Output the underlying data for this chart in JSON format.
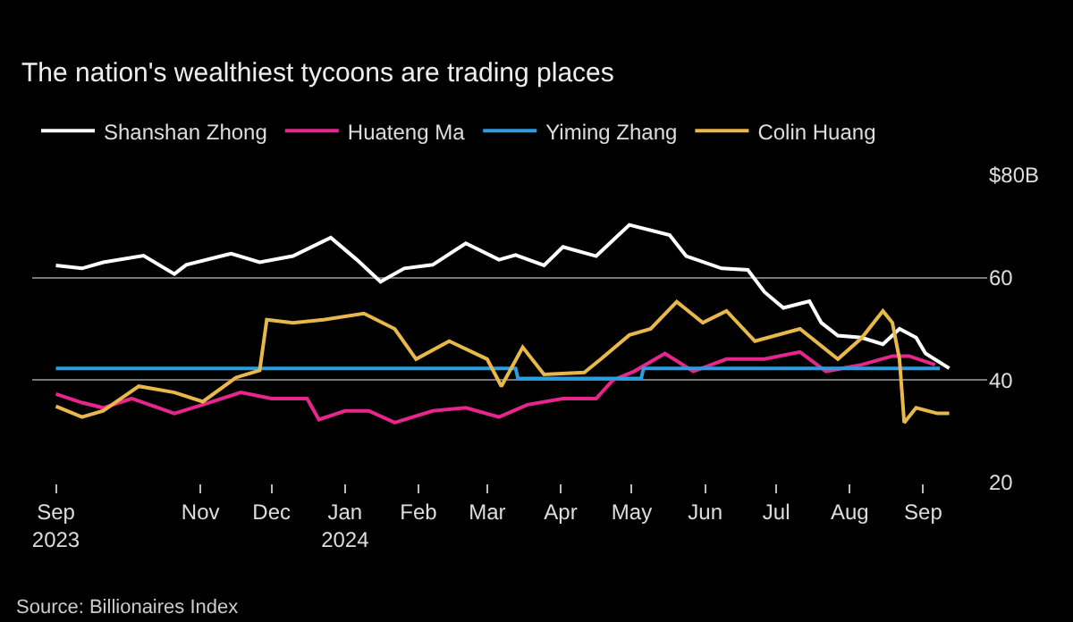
{
  "chart_data": {
    "type": "line",
    "title": "The nation's wealthiest tycoons are trading places",
    "annotations": [
      "Source: Billionaires Index"
    ],
    "xlim": [
      "2023-08-22",
      "2024-09-28"
    ],
    "xticks": [
      {
        "value": "2023-09-01",
        "label": "Sep\n2023"
      },
      {
        "value": "2023-11-01",
        "label": "Nov"
      },
      {
        "value": "2023-12-01",
        "label": "Dec"
      },
      {
        "value": "2024-01-01",
        "label": "Jan\n2024"
      },
      {
        "value": "2024-02-01",
        "label": "Feb"
      },
      {
        "value": "2024-03-01",
        "label": "Mar"
      },
      {
        "value": "2024-04-01",
        "label": "Apr"
      },
      {
        "value": "2024-05-01",
        "label": "May"
      },
      {
        "value": "2024-06-01",
        "label": "Jun"
      },
      {
        "value": "2024-07-01",
        "label": "Jul"
      },
      {
        "value": "2024-08-01",
        "label": "Aug"
      },
      {
        "value": "2024-09-01",
        "label": "Sep"
      }
    ],
    "ylim": [
      20,
      80
    ],
    "yticks": [
      20,
      40,
      60,
      {
        "value": 80,
        "label": "$80B"
      }
    ],
    "grid": "y",
    "legend": "top left",
    "series": [
      {
        "name": "Shanshan Zhong",
        "color": "#ffffff",
        "x": [
          "2023-09-01",
          "2023-09-12",
          "2023-09-21",
          "2023-10-08",
          "2023-10-21",
          "2023-10-26",
          "2023-11-14",
          "2023-11-26",
          "2023-12-10",
          "2023-12-26",
          "2024-01-06",
          "2024-01-16",
          "2024-01-26",
          "2024-02-07",
          "2024-02-21",
          "2024-03-06",
          "2024-03-13",
          "2024-03-25",
          "2024-04-02",
          "2024-04-16",
          "2024-04-30",
          "2024-05-17",
          "2024-05-24",
          "2024-06-08",
          "2024-06-19",
          "2024-06-26",
          "2024-07-04",
          "2024-07-15",
          "2024-07-20",
          "2024-07-27",
          "2024-08-06",
          "2024-08-15",
          "2024-08-22",
          "2024-08-29",
          "2024-09-02",
          "2024-09-12"
        ],
        "values": [
          62.4,
          61.8,
          63,
          64.3,
          60.7,
          62.5,
          64.7,
          63,
          64.2,
          67.8,
          63.5,
          59.2,
          61.8,
          62.5,
          66.7,
          63.5,
          64.4,
          62.4,
          66,
          64.2,
          70.3,
          68.3,
          64.2,
          61.8,
          61.5,
          57.2,
          54.1,
          55.4,
          51.2,
          48.7,
          48.3,
          47,
          50,
          48.3,
          45.2,
          42.3
        ]
      },
      {
        "name": "Huateng Ma",
        "color": "#e6268c",
        "x": [
          "2023-09-01",
          "2023-09-12",
          "2023-09-21",
          "2023-10-03",
          "2023-10-21",
          "2023-11-02",
          "2023-11-18",
          "2023-12-01",
          "2023-12-16",
          "2023-12-21",
          "2024-01-01",
          "2024-01-11",
          "2024-01-22",
          "2024-02-07",
          "2024-02-21",
          "2024-03-06",
          "2024-03-18",
          "2024-04-02",
          "2024-04-16",
          "2024-04-23",
          "2024-05-02",
          "2024-05-15",
          "2024-05-27",
          "2024-06-10",
          "2024-06-26",
          "2024-07-11",
          "2024-07-22",
          "2024-08-06",
          "2024-08-19",
          "2024-08-26",
          "2024-09-06"
        ],
        "values": [
          37.3,
          35.6,
          34.6,
          36.4,
          33.5,
          35.2,
          37.6,
          36.4,
          36.4,
          32.3,
          34,
          34,
          31.7,
          34,
          34.6,
          32.8,
          35.2,
          36.4,
          36.4,
          40,
          41.7,
          45.2,
          41.7,
          44.1,
          44.1,
          45.5,
          41.7,
          43,
          44.7,
          44.7,
          43
        ]
      },
      {
        "name": "Yiming Zhang",
        "color": "#2b9de0",
        "x": [
          "2023-09-01",
          "2024-03-13",
          "2024-03-14",
          "2024-05-05",
          "2024-05-06",
          "2024-09-08"
        ],
        "values": [
          42.3,
          42.3,
          40.3,
          40.3,
          42.3,
          42.3
        ]
      },
      {
        "name": "Colin Huang",
        "color": "#e8b84a",
        "x": [
          "2023-09-01",
          "2023-09-12",
          "2023-09-21",
          "2023-10-06",
          "2023-10-21",
          "2023-11-02",
          "2023-11-16",
          "2023-11-26",
          "2023-11-29",
          "2023-12-10",
          "2023-12-23",
          "2024-01-09",
          "2024-01-22",
          "2024-01-31",
          "2024-02-14",
          "2024-03-01",
          "2024-03-07",
          "2024-03-16",
          "2024-03-25",
          "2024-04-11",
          "2024-04-18",
          "2024-04-30",
          "2024-05-09",
          "2024-05-20",
          "2024-05-31",
          "2024-06-10",
          "2024-06-22",
          "2024-07-11",
          "2024-07-27",
          "2024-08-06",
          "2024-08-15",
          "2024-08-19",
          "2024-08-22",
          "2024-08-24",
          "2024-08-29",
          "2024-09-07",
          "2024-09-12"
        ],
        "values": [
          34.9,
          32.8,
          34,
          38.8,
          37.6,
          35.8,
          40.5,
          41.9,
          51.8,
          51.2,
          51.8,
          53,
          50,
          44.1,
          47.6,
          44.1,
          38.8,
          46.4,
          41.1,
          41.5,
          44.1,
          48.8,
          50,
          55.3,
          51.2,
          53.5,
          47.6,
          50,
          44.1,
          48.2,
          53.5,
          51.2,
          44.1,
          31.7,
          34.6,
          33.5,
          33.5
        ]
      }
    ]
  }
}
